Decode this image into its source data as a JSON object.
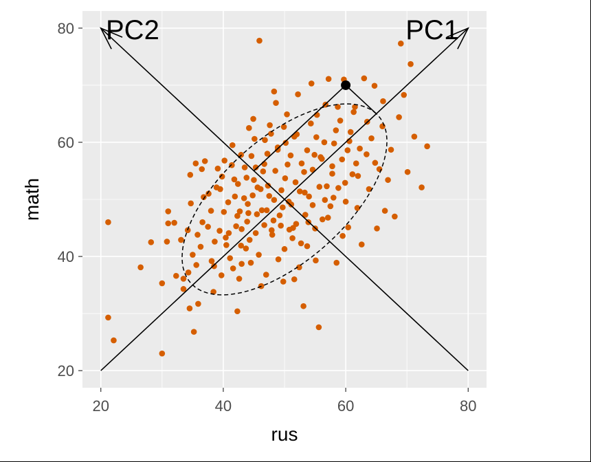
{
  "chart_data": {
    "type": "scatter",
    "title": "",
    "xlabel": "rus",
    "ylabel": "math",
    "xlim": [
      17,
      83
    ],
    "ylim": [
      17,
      83
    ],
    "x_ticks": [
      20,
      40,
      60,
      80
    ],
    "y_ticks": [
      20,
      40,
      60,
      80
    ],
    "x_tick_labels": [
      "20",
      "40",
      "60",
      "80"
    ],
    "y_tick_labels": [
      "20",
      "40",
      "60",
      "80"
    ],
    "grid": true,
    "colors": {
      "point": "#d55e00",
      "panel": "#ebebeb",
      "grid": "#ffffff",
      "line": "#000000"
    },
    "points": [
      [
        21.2,
        46.0
      ],
      [
        21.2,
        29.3
      ],
      [
        22.1,
        25.3
      ],
      [
        26.5,
        38.1
      ],
      [
        28.2,
        42.5
      ],
      [
        30.0,
        23.0
      ],
      [
        30.0,
        35.3
      ],
      [
        30.8,
        42.6
      ],
      [
        31.0,
        45.8
      ],
      [
        31.0,
        47.9
      ],
      [
        32.0,
        45.9
      ],
      [
        32.3,
        36.6
      ],
      [
        33.1,
        42.9
      ],
      [
        33.5,
        34.3
      ],
      [
        33.5,
        36.1
      ],
      [
        34.2,
        44.6
      ],
      [
        34.3,
        37.2
      ],
      [
        34.5,
        30.9
      ],
      [
        34.6,
        54.3
      ],
      [
        34.7,
        49.3
      ],
      [
        35.0,
        40.3
      ],
      [
        35.2,
        26.8
      ],
      [
        35.5,
        56.3
      ],
      [
        35.9,
        31.7
      ],
      [
        36.5,
        55.3
      ],
      [
        36.6,
        46.0
      ],
      [
        36.8,
        50.4
      ],
      [
        37.0,
        56.7
      ],
      [
        37.5,
        45.2
      ],
      [
        38.1,
        39.2
      ],
      [
        38.4,
        33.8
      ],
      [
        38.5,
        38.3
      ],
      [
        38.6,
        42.6
      ],
      [
        38.9,
        52.1
      ],
      [
        39.4,
        44.5
      ],
      [
        39.5,
        51.8
      ],
      [
        39.8,
        54.0
      ],
      [
        40.1,
        47.8
      ],
      [
        40.4,
        43.3
      ],
      [
        40.8,
        49.5
      ],
      [
        41.1,
        39.7
      ],
      [
        41.4,
        56.0
      ],
      [
        41.6,
        37.9
      ],
      [
        41.9,
        50.5
      ],
      [
        42.1,
        45.3
      ],
      [
        42.3,
        30.4
      ],
      [
        42.4,
        52.7
      ],
      [
        42.7,
        47.9
      ],
      [
        42.9,
        41.9
      ],
      [
        43.0,
        38.7
      ],
      [
        43.5,
        55.6
      ],
      [
        43.8,
        53.8
      ],
      [
        44.1,
        47.6
      ],
      [
        44.3,
        42.9
      ],
      [
        44.6,
        57.6
      ],
      [
        44.8,
        50.7
      ],
      [
        45.1,
        60.6
      ],
      [
        45.3,
        44.1
      ],
      [
        45.6,
        52.1
      ],
      [
        45.9,
        77.8
      ],
      [
        46.3,
        48.1
      ],
      [
        46.5,
        54.9
      ],
      [
        46.7,
        45.5
      ],
      [
        47.2,
        58.0
      ],
      [
        47.5,
        50.6
      ],
      [
        47.8,
        61.5
      ],
      [
        48.0,
        43.8
      ],
      [
        48.3,
        49.9
      ],
      [
        48.6,
        66.9
      ],
      [
        48.9,
        59.1
      ],
      [
        49.2,
        47.2
      ],
      [
        49.5,
        51.6
      ],
      [
        49.8,
        35.6
      ],
      [
        50.1,
        53.7
      ],
      [
        50.4,
        64.9
      ],
      [
        50.7,
        49.6
      ],
      [
        51.0,
        57.7
      ],
      [
        51.3,
        43.2
      ],
      [
        51.6,
        61.0
      ],
      [
        51.9,
        45.7
      ],
      [
        52.2,
        68.4
      ],
      [
        52.5,
        51.4
      ],
      [
        52.8,
        56.3
      ],
      [
        53.1,
        31.3
      ],
      [
        53.4,
        47.3
      ],
      [
        53.7,
        58.6
      ],
      [
        54.0,
        50.5
      ],
      [
        54.3,
        63.3
      ],
      [
        54.6,
        55.2
      ],
      [
        55.0,
        44.9
      ],
      [
        55.3,
        64.8
      ],
      [
        55.6,
        27.6
      ],
      [
        55.9,
        57.4
      ],
      [
        56.2,
        46.5
      ],
      [
        56.5,
        60.0
      ],
      [
        56.9,
        52.3
      ],
      [
        57.2,
        71.1
      ],
      [
        57.5,
        48.8
      ],
      [
        57.8,
        55.8
      ],
      [
        58.1,
        59.8
      ],
      [
        58.5,
        38.9
      ],
      [
        58.8,
        52.0
      ],
      [
        59.1,
        63.8
      ],
      [
        59.4,
        57.0
      ],
      [
        59.7,
        71.0
      ],
      [
        60.0,
        49.6
      ],
      [
        60.4,
        45.1
      ],
      [
        60.8,
        61.8
      ],
      [
        61.1,
        54.4
      ],
      [
        61.5,
        66.2
      ],
      [
        61.9,
        48.5
      ],
      [
        62.3,
        58.9
      ],
      [
        62.6,
        42.1
      ],
      [
        63.0,
        71.2
      ],
      [
        63.4,
        57.9
      ],
      [
        63.8,
        51.8
      ],
      [
        64.2,
        60.7
      ],
      [
        64.7,
        69.9
      ],
      [
        65.1,
        44.9
      ],
      [
        65.5,
        55.3
      ],
      [
        66.0,
        62.8
      ],
      [
        66.4,
        48.0
      ],
      [
        66.9,
        53.4
      ],
      [
        67.4,
        58.7
      ],
      [
        68.0,
        47.0
      ],
      [
        68.7,
        64.4
      ],
      [
        69.0,
        77.3
      ],
      [
        69.5,
        68.3
      ],
      [
        70.1,
        54.8
      ],
      [
        70.6,
        73.7
      ],
      [
        71.2,
        61.0
      ],
      [
        72.4,
        52.1
      ],
      [
        73.3,
        59.3
      ],
      [
        48.3,
        68.9
      ],
      [
        49.4,
        45.4
      ],
      [
        47.1,
        48.1
      ],
      [
        45.8,
        40.3
      ],
      [
        51.6,
        36.0
      ],
      [
        52.4,
        38.1
      ],
      [
        53.7,
        41.8
      ],
      [
        56.6,
        49.9
      ],
      [
        46.7,
        56.2
      ],
      [
        44.9,
        64.1
      ],
      [
        43.7,
        41.4
      ],
      [
        42.9,
        57.8
      ],
      [
        54.9,
        57.8
      ],
      [
        50.5,
        56.1
      ],
      [
        41.8,
        53.5
      ],
      [
        47.3,
        52.4
      ],
      [
        50.8,
        44.7
      ],
      [
        58.7,
        66.2
      ],
      [
        60.3,
        58.6
      ],
      [
        46.2,
        34.8
      ],
      [
        40.9,
        44.1
      ],
      [
        39.7,
        36.7
      ],
      [
        44.2,
        62.5
      ],
      [
        61.3,
        65.3
      ],
      [
        54.4,
        70.3
      ],
      [
        48.9,
        58.7
      ],
      [
        35.6,
        38.5
      ],
      [
        45.3,
        55.6
      ],
      [
        51.1,
        49.1
      ],
      [
        59.5,
        43.6
      ],
      [
        43.4,
        50.2
      ],
      [
        53.2,
        54.8
      ],
      [
        47.9,
        44.6
      ],
      [
        37.6,
        51.0
      ],
      [
        46.8,
        60.4
      ],
      [
        55.7,
        52.2
      ],
      [
        62.0,
        54.1
      ],
      [
        50.0,
        41.3
      ],
      [
        42.3,
        47.1
      ],
      [
        48.5,
        55.0
      ],
      [
        58.0,
        50.3
      ],
      [
        36.3,
        41.7
      ],
      [
        52.0,
        61.4
      ],
      [
        44.5,
        38.9
      ],
      [
        57.1,
        46.8
      ],
      [
        49.7,
        48.6
      ],
      [
        40.2,
        56.8
      ],
      [
        63.5,
        63.6
      ],
      [
        56.7,
        66.6
      ],
      [
        45.5,
        47.4
      ],
      [
        51.8,
        53.0
      ],
      [
        38.0,
        48.0
      ],
      [
        53.9,
        46.0
      ],
      [
        47.6,
        63.0
      ],
      [
        60.6,
        60.2
      ],
      [
        43.0,
        44.8
      ],
      [
        49.0,
        39.5
      ],
      [
        55.2,
        60.9
      ],
      [
        66.1,
        67.2
      ],
      [
        41.5,
        59.5
      ],
      [
        57.8,
        54.5
      ],
      [
        46.1,
        51.8
      ],
      [
        52.7,
        42.3
      ],
      [
        50.2,
        59.9
      ],
      [
        39.1,
        55.4
      ],
      [
        64.8,
        56.4
      ],
      [
        48.2,
        46.3
      ],
      [
        55.1,
        39.3
      ],
      [
        44.0,
        49.2
      ],
      [
        59.9,
        52.9
      ],
      [
        53.3,
        51.2
      ],
      [
        35.8,
        43.8
      ],
      [
        47.0,
        36.8
      ],
      [
        61.7,
        56.3
      ],
      [
        42.6,
        36.1
      ],
      [
        51.4,
        45.0
      ],
      [
        56.1,
        57.1
      ],
      [
        40.5,
        42.0
      ],
      [
        45.0,
        53.4
      ],
      [
        58.4,
        62.1
      ],
      [
        49.9,
        62.7
      ],
      [
        43.9,
        46.1
      ],
      [
        54.6,
        49.0
      ]
    ],
    "highlight_point": [
      60,
      70
    ],
    "ellipse": {
      "center": [
        50,
        50
      ],
      "axis1_direction": [
        1,
        1
      ],
      "axis1_halflength_data_units": [
        15,
        15
      ],
      "axis2_halflength_data_units": [
        -7.4,
        7.4
      ]
    },
    "projection": {
      "from": [
        60,
        70
      ],
      "to_pc1": [
        65,
        65
      ],
      "to_pc2": [
        45,
        55
      ]
    },
    "axes_arrows": [
      {
        "label": "PC1",
        "from": [
          20,
          20
        ],
        "to": [
          80,
          80
        ]
      },
      {
        "label": "PC2",
        "from": [
          80,
          20
        ],
        "to": [
          20,
          80
        ]
      }
    ]
  }
}
